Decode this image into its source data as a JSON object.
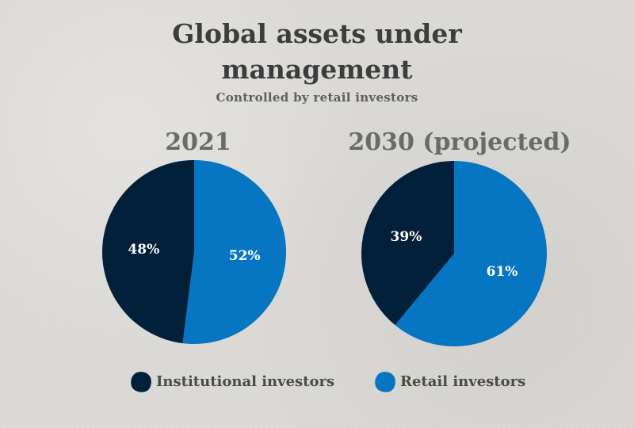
{
  "title_line1": "Global assets under",
  "title_line2": "management",
  "subtitle": "Controlled by retail investors",
  "colors": {
    "institutional": "#022039",
    "retail": "#0675c2",
    "label_text": "#ffffff"
  },
  "legend": [
    {
      "label": "Institutional investors",
      "color": "#022039"
    },
    {
      "label": "Retail investors",
      "color": "#0675c2"
    }
  ],
  "chart_data": [
    {
      "type": "pie",
      "title": "2021",
      "categories": [
        "Institutional investors",
        "Retail investors"
      ],
      "values": [
        48,
        52
      ],
      "labels": [
        "48%",
        "52%"
      ],
      "colors": [
        "#022039",
        "#0675c2"
      ],
      "legend": "bottom"
    },
    {
      "type": "pie",
      "title": "2030 (projected)",
      "categories": [
        "Institutional investors",
        "Retail investors"
      ],
      "values": [
        39,
        61
      ],
      "labels": [
        "39%",
        "61%"
      ],
      "colors": [
        "#022039",
        "#0675c2"
      ],
      "legend": "bottom"
    }
  ]
}
